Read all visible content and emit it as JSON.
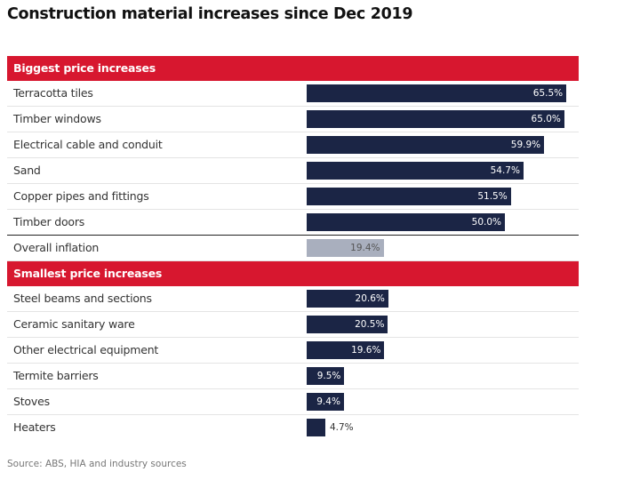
{
  "title": "Construction material increases since Dec 2019",
  "source": "Source: ABS, HIA and industry sources",
  "colors": {
    "header": "#d7172f",
    "bar": "#1b2545",
    "overall": "#a9afbe"
  },
  "chart_data": {
    "type": "bar",
    "orientation": "horizontal",
    "title": "Construction material increases since Dec 2019",
    "unit": "%",
    "groups": [
      {
        "name": "Biggest price increases",
        "categories": [
          "Terracotta tiles",
          "Timber windows",
          "Electrical cable and conduit",
          "Sand",
          "Copper pipes and fittings",
          "Timber doors"
        ],
        "values": [
          65.5,
          65.0,
          59.9,
          54.7,
          51.5,
          50.0
        ],
        "labels": [
          "65.5%",
          "65.0%",
          "59.9%",
          "54.7%",
          "51.5%",
          "50.0%"
        ]
      },
      {
        "name": "",
        "categories": [
          "Overall inflation"
        ],
        "values": [
          19.4
        ],
        "labels": [
          "19.4%"
        ],
        "highlight": true
      },
      {
        "name": "Smallest price increases",
        "categories": [
          "Steel beams and sections",
          "Ceramic sanitary ware",
          "Other electrical equipment",
          "Termite barriers",
          "Stoves",
          "Heaters"
        ],
        "values": [
          20.6,
          20.5,
          19.6,
          9.5,
          9.4,
          4.7
        ],
        "labels": [
          "20.6%",
          "20.5%",
          "19.6%",
          "9.5%",
          "9.4%",
          "4.7%"
        ]
      }
    ],
    "xlim": [
      0,
      72
    ]
  }
}
